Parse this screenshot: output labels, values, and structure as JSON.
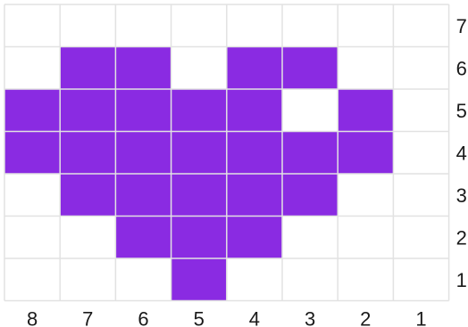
{
  "grid": {
    "columns": [
      "8",
      "7",
      "6",
      "5",
      "4",
      "3",
      "2",
      "1"
    ],
    "rows": [
      "7",
      "6",
      "5",
      "4",
      "3",
      "2",
      "1"
    ],
    "fill_color": "#8a2be2",
    "line_color": "#e2e2e2",
    "filled_cells": [
      {
        "col": "7",
        "row": "6"
      },
      {
        "col": "6",
        "row": "6"
      },
      {
        "col": "4",
        "row": "6"
      },
      {
        "col": "3",
        "row": "6"
      },
      {
        "col": "8",
        "row": "5"
      },
      {
        "col": "7",
        "row": "5"
      },
      {
        "col": "6",
        "row": "5"
      },
      {
        "col": "5",
        "row": "5"
      },
      {
        "col": "4",
        "row": "5"
      },
      {
        "col": "2",
        "row": "5"
      },
      {
        "col": "8",
        "row": "4"
      },
      {
        "col": "7",
        "row": "4"
      },
      {
        "col": "6",
        "row": "4"
      },
      {
        "col": "5",
        "row": "4"
      },
      {
        "col": "4",
        "row": "4"
      },
      {
        "col": "3",
        "row": "4"
      },
      {
        "col": "2",
        "row": "4"
      },
      {
        "col": "7",
        "row": "3"
      },
      {
        "col": "6",
        "row": "3"
      },
      {
        "col": "5",
        "row": "3"
      },
      {
        "col": "4",
        "row": "3"
      },
      {
        "col": "3",
        "row": "3"
      },
      {
        "col": "6",
        "row": "2"
      },
      {
        "col": "5",
        "row": "2"
      },
      {
        "col": "4",
        "row": "2"
      },
      {
        "col": "5",
        "row": "1"
      }
    ]
  }
}
